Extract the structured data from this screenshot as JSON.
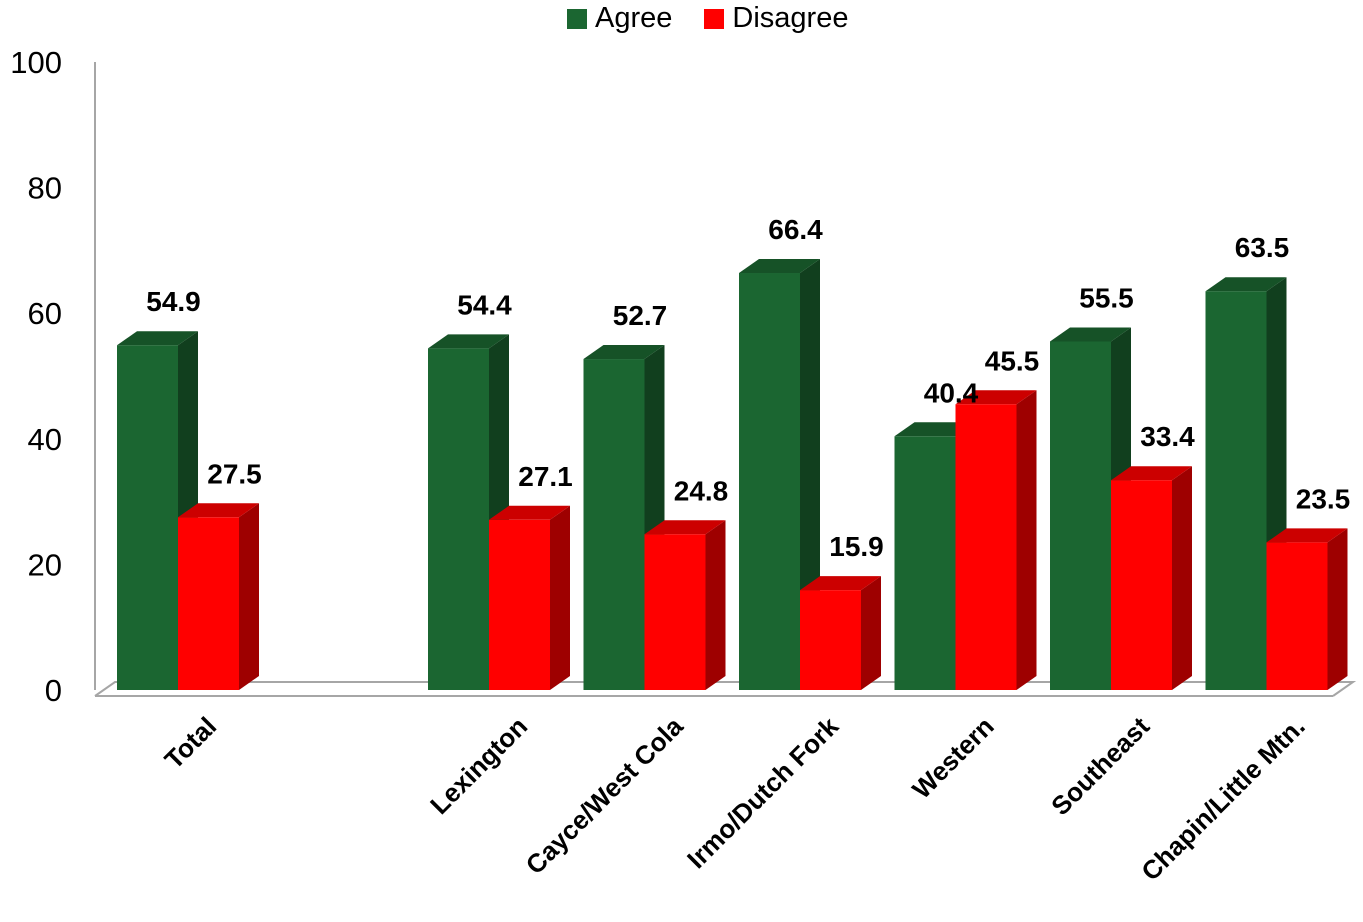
{
  "chart_data": {
    "type": "bar",
    "categories": [
      "Total",
      "",
      "Lexington",
      "Cayce/West Cola",
      "Irmo/Dutch Fork",
      "Western",
      "Southeast",
      "Chapin/Little Mtn."
    ],
    "series": [
      {
        "name": "Agree",
        "color": "#1b6631",
        "values": [
          54.9,
          null,
          54.4,
          52.7,
          66.4,
          40.4,
          55.5,
          63.5
        ],
        "labels": [
          "54.9",
          "",
          "54.4",
          "52.7",
          "66.4",
          "40.4",
          "55.5",
          "63.5"
        ]
      },
      {
        "name": "Disagree",
        "color": "#ff0000",
        "values": [
          27.5,
          null,
          27.1,
          24.8,
          15.9,
          45.5,
          33.4,
          23.5
        ],
        "labels": [
          "27.5",
          "",
          "27.1",
          "24.8",
          "15.9",
          "45.5",
          "33.4",
          "23.5"
        ]
      }
    ],
    "yticks": [
      "0",
      "20",
      "40",
      "60",
      "80",
      "100"
    ],
    "ylim": [
      0,
      100
    ],
    "legend_position": "top",
    "grid": false
  }
}
